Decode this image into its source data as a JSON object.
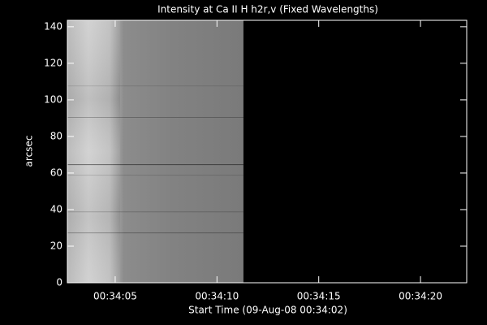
{
  "chart_data": {
    "type": "image",
    "title": "Intensity at Ca II H h2r,v (Fixed Wavelengths)",
    "x_label": "Start Time (09-Aug-08 00:34:02)",
    "y_label": "arcsec",
    "xlim": [
      2.65,
      22.27
    ],
    "xticks": [
      {
        "value": 5,
        "label": "00:34:05"
      },
      {
        "value": 10,
        "label": "00:34:10"
      },
      {
        "value": 15,
        "label": "00:34:15"
      },
      {
        "value": 20,
        "label": "00:34:20"
      }
    ],
    "ylim": [
      0,
      143.5
    ],
    "yticks": [
      0,
      20,
      40,
      60,
      80,
      100,
      120,
      140
    ],
    "image_xlim": [
      2.65,
      11.3
    ],
    "image_ylim": [
      0,
      143.5
    ]
  }
}
